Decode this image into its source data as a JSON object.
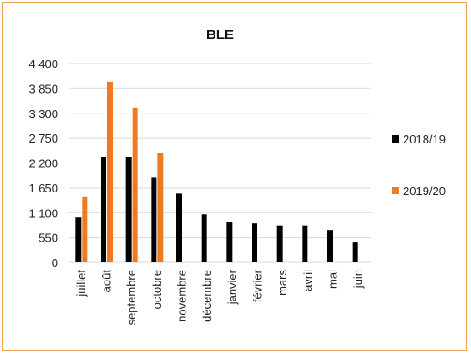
{
  "chart_data": {
    "type": "bar",
    "title": "BLE",
    "xlabel": "",
    "ylabel": "",
    "ylim": [
      0,
      4400
    ],
    "yticks": [
      0,
      550,
      1100,
      1650,
      2200,
      2750,
      3300,
      3850,
      4400
    ],
    "ytick_labels": [
      "0",
      "550",
      "1 100",
      "1 650",
      "2 200",
      "2 750",
      "3 300",
      "3 850",
      "4 400"
    ],
    "categories": [
      "juillet",
      "août",
      "septembre",
      "octobre",
      "novembre",
      "décembre",
      "janvier",
      "février",
      "mars",
      "avril",
      "mai",
      "juin"
    ],
    "series": [
      {
        "name": "2018/19",
        "color": "#000000",
        "values": [
          1000,
          2330,
          2330,
          1880,
          1520,
          1060,
          900,
          860,
          810,
          810,
          720,
          440
        ]
      },
      {
        "name": "2019/20",
        "color": "#ee7b22",
        "values": [
          1450,
          4000,
          3420,
          2420,
          null,
          null,
          null,
          null,
          null,
          null,
          null,
          null
        ]
      }
    ],
    "grid": "horizontal",
    "legend_position": "right"
  }
}
